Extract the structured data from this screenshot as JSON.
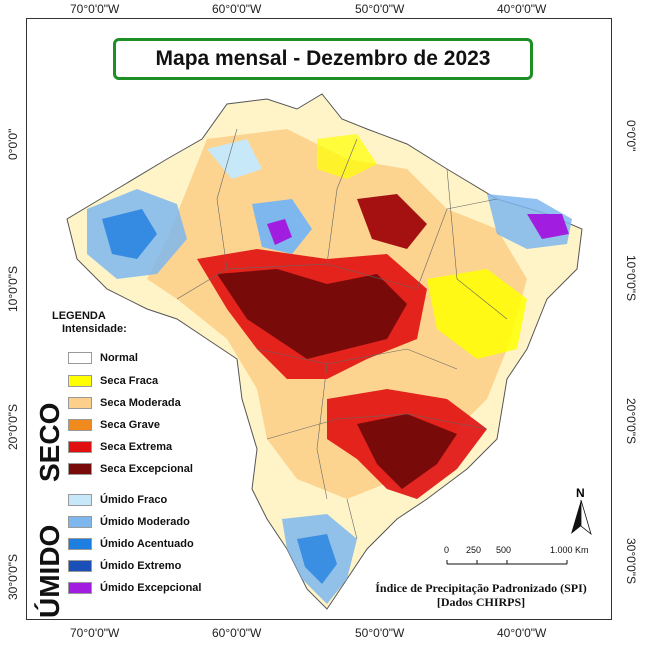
{
  "title": "Mapa mensal - Dezembro de 2023",
  "coordinates": {
    "top": [
      "70°0'0\"W",
      "60°0'0\"W",
      "50°0'0\"W",
      "40°0'0\"W"
    ],
    "bottom": [
      "70°0'0\"W",
      "60°0'0\"W",
      "50°0'0\"W",
      "40°0'0\"W"
    ],
    "left": [
      "0°0'0\"",
      "10°0'0\"S",
      "20°0'0\"S",
      "30°0'0\"S"
    ],
    "right": [
      "0°0'0\"",
      "10°0'0\"S",
      "20°0'0\"S",
      "30°0'0\"S"
    ]
  },
  "legend": {
    "heading": "LEGENDA",
    "subheading": "Intensidade:",
    "normal": {
      "label": "Normal",
      "color": "#ffffff"
    },
    "seco_label": "SECO",
    "umido_label": "ÚMIDO",
    "seco": [
      {
        "label": "Seca Fraca",
        "color": "#ffff00"
      },
      {
        "label": "Seca Moderada",
        "color": "#fcd08a"
      },
      {
        "label": "Seca Grave",
        "color": "#f08a1c"
      },
      {
        "label": "Seca Extrema",
        "color": "#e01010"
      },
      {
        "label": "Seca Excepcional",
        "color": "#780a0a"
      }
    ],
    "umido": [
      {
        "label": "Úmido Fraco",
        "color": "#c7e8f8"
      },
      {
        "label": "Úmido Moderado",
        "color": "#7eb7ee"
      },
      {
        "label": "Úmido Acentuado",
        "color": "#1e7de0"
      },
      {
        "label": "Úmido Extremo",
        "color": "#1a4fb8"
      },
      {
        "label": "Úmido Excepcional",
        "color": "#a11ee0"
      }
    ]
  },
  "scale": {
    "ticks": [
      "0",
      "250",
      "500",
      "1.000 Km"
    ]
  },
  "north_label": "N",
  "caption": {
    "line1": "Índice de Precipitação Padronizado (SPI)",
    "line2": "[Dados CHIRPS]"
  }
}
